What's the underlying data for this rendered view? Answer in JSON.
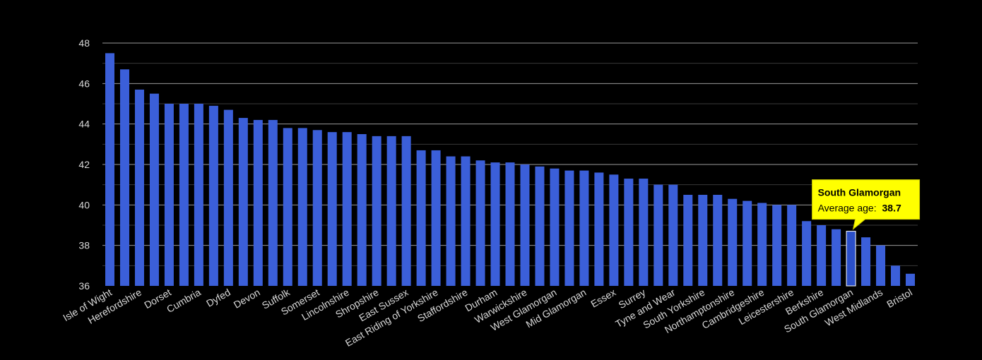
{
  "chart_data": {
    "type": "bar",
    "title": "",
    "xlabel": "",
    "ylabel": "",
    "ylim": [
      36,
      48
    ],
    "y_ticks": [
      "36",
      "38",
      "40",
      "42",
      "44",
      "46",
      "48"
    ],
    "grid": true,
    "bar_color": "#3b5fd9",
    "highlight_color": "#2b4fc9",
    "categories": [
      "Isle of Wight",
      "",
      "Herefordshire",
      "",
      "Dorset",
      "",
      "Cumbria",
      "",
      "Dyfed",
      "",
      "Devon",
      "",
      "Suffolk",
      "",
      "Somerset",
      "",
      "Lincolnshire",
      "",
      "Shropshire",
      "",
      "East Sussex",
      "",
      "East Riding of Yorkshire",
      "",
      "Staffordshire",
      "",
      "Durham",
      "",
      "Warwickshire",
      "",
      "West Glamorgan",
      "",
      "Mid Glamorgan",
      "",
      "Essex",
      "",
      "Surrey",
      "",
      "Tyne and Wear",
      "",
      "South Yorkshire",
      "",
      "Northamptonshire",
      "",
      "Cambridgeshire",
      "",
      "Leicestershire",
      "",
      "Berkshire",
      "",
      "South Glamorgan",
      "",
      "West Midlands",
      "",
      "Bristol"
    ],
    "values": [
      47.5,
      46.7,
      45.7,
      45.5,
      45.0,
      45.0,
      45.0,
      44.9,
      44.7,
      44.3,
      44.2,
      44.2,
      43.8,
      43.8,
      43.7,
      43.6,
      43.6,
      43.5,
      43.4,
      43.4,
      43.4,
      42.7,
      42.7,
      42.4,
      42.4,
      42.2,
      42.1,
      42.1,
      42.0,
      41.9,
      41.8,
      41.7,
      41.7,
      41.6,
      41.5,
      41.3,
      41.3,
      41.0,
      41.0,
      40.5,
      40.5,
      40.5,
      40.3,
      40.2,
      40.1,
      40.0,
      40.0,
      39.2,
      39.0,
      38.8,
      38.7,
      38.4,
      38.0,
      37.0,
      36.6
    ],
    "highlight_index": 50,
    "tooltip": {
      "title": "South Glamorgan",
      "label": "Average age:",
      "value": "38.7",
      "background": "#ffff00"
    }
  }
}
